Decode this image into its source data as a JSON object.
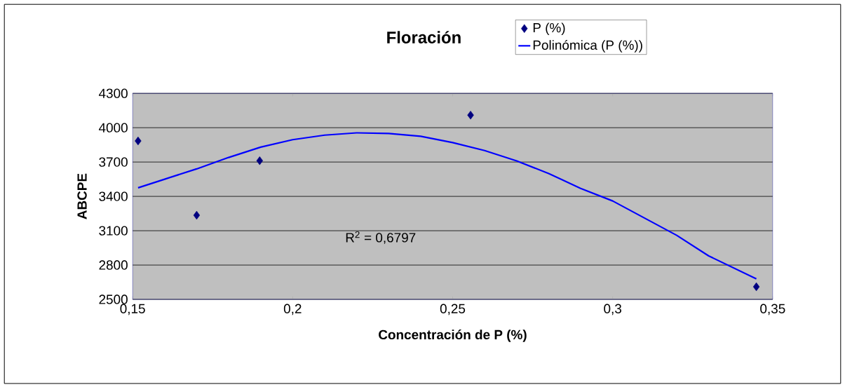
{
  "chart_data": {
    "type": "scatter",
    "title": "Floración",
    "xlabel": "Concentración de P (%)",
    "ylabel": "ABCPE",
    "series": [
      {
        "name": "P (%)",
        "color": "#000080",
        "marker": "diamond",
        "x": [
          0.1517,
          0.17,
          0.1897,
          0.2556,
          0.3449
        ],
        "values": [
          3884,
          3235,
          3712,
          4110,
          2610
        ]
      },
      {
        "name": "Polinómica (P (%))",
        "type": "line",
        "color": "#0000ff",
        "marker": "none",
        "line_style": "solid",
        "x": [
          0.1517,
          0.16,
          0.17,
          0.18,
          0.19,
          0.2,
          0.21,
          0.22,
          0.23,
          0.24,
          0.25,
          0.26,
          0.27,
          0.28,
          0.29,
          0.3,
          0.31,
          0.32,
          0.33,
          0.3449
        ],
        "values": [
          3475,
          3550,
          3640,
          3740,
          3830,
          3895,
          3935,
          3955,
          3950,
          3925,
          3870,
          3800,
          3710,
          3600,
          3470,
          3360,
          3210,
          3060,
          2880,
          2680
        ]
      }
    ],
    "annotations": [
      "R$^{2}$ = 0,6797"
    ],
    "xlim": [
      0.15,
      0.35
    ],
    "ylim": [
      2500,
      4300
    ],
    "xticks": [
      {
        "value": 0.15,
        "label": "0,15"
      },
      {
        "value": 0.2,
        "label": "0,2"
      },
      {
        "value": 0.25,
        "label": "0,25"
      },
      {
        "value": 0.3,
        "label": "0,3"
      },
      {
        "value": 0.35,
        "label": "0,35"
      }
    ],
    "yticks": [
      2500,
      2800,
      3100,
      3400,
      3700,
      4000,
      4300
    ],
    "grid": "y",
    "legend": "top right"
  }
}
